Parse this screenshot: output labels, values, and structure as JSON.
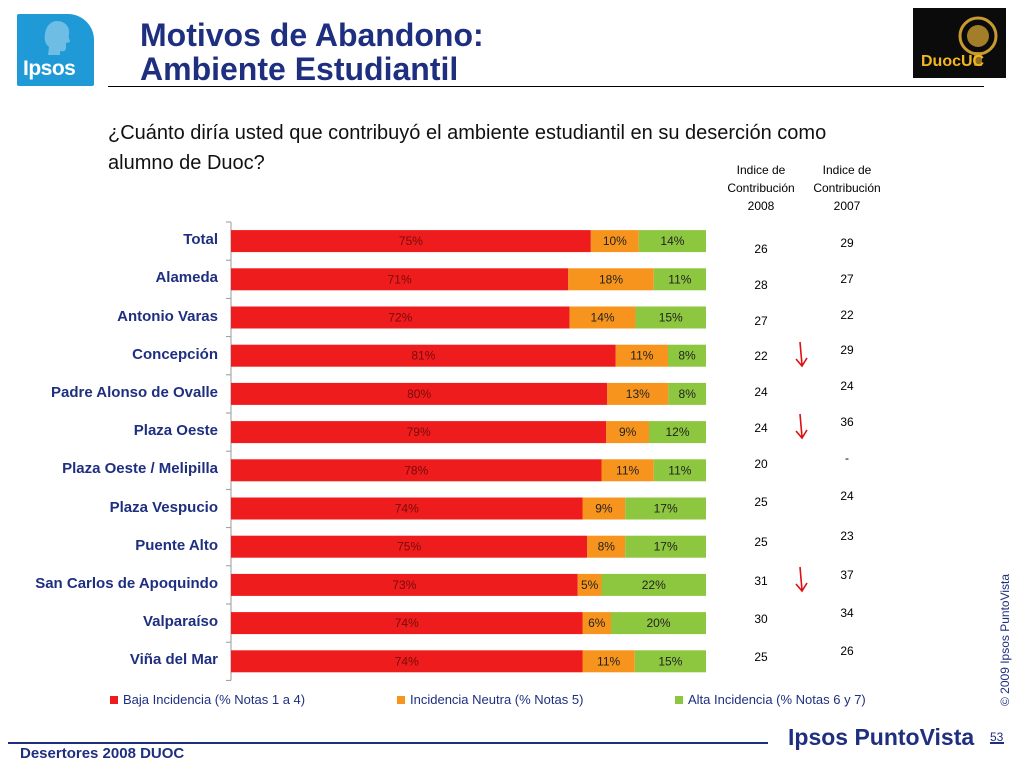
{
  "header": {
    "title_line1": "Motivos de Abandono:",
    "title_line2": "Ambiente Estudiantil",
    "ipsos_logo_text": "Ipsos",
    "duoc_logo_text": "DuocUC"
  },
  "question": "¿Cuánto diría usted que contribuyó el ambiente estudiantil en su deserción como alumno de Duoc?",
  "index_table": {
    "header_2008": "Indice de Contribución 2008",
    "header_2007": "Indice de Contribución 2007",
    "values_2008": [
      "26",
      "28",
      "27",
      "22",
      "24",
      "24",
      "20",
      "25",
      "25",
      "31",
      "30",
      "25"
    ],
    "values_2007": [
      "29",
      "27",
      "22",
      "29",
      "24",
      "36",
      "-",
      "24",
      "23",
      "37",
      "34",
      "26"
    ],
    "down_arrow_rows": [
      3,
      5,
      9
    ]
  },
  "chart_data": {
    "type": "bar",
    "orientation": "horizontal",
    "stacked": true,
    "categories": [
      "Total",
      "Alameda",
      "Antonio Varas",
      "Concepción",
      "Padre Alonso de Ovalle",
      "Plaza Oeste",
      "Plaza Oeste / Melipilla",
      "Plaza Vespucio",
      "Puente Alto",
      "San Carlos de Apoquindo",
      "Valparaíso",
      "Viña del Mar"
    ],
    "series": [
      {
        "name": "Baja Incidencia (% Notas 1 a 4)",
        "color": "#ee1c1c",
        "values": [
          75,
          71,
          72,
          81,
          80,
          79,
          78,
          74,
          75,
          73,
          74,
          74
        ]
      },
      {
        "name": "Incidencia Neutra (% Notas 5)",
        "color": "#f7941d",
        "values": [
          10,
          18,
          14,
          11,
          13,
          9,
          11,
          9,
          8,
          5,
          6,
          11
        ]
      },
      {
        "name": "Alta Incidencia (% Notas 6 y 7)",
        "color": "#8dc63f",
        "values": [
          14,
          11,
          15,
          8,
          8,
          12,
          11,
          17,
          17,
          22,
          20,
          15
        ]
      }
    ],
    "value_suffix": "%",
    "legend": "bottom",
    "grid": false
  },
  "footer": {
    "left_text": "Desertores 2008 DUOC",
    "brand": "Ipsos PuntoVista",
    "copyright": "© 2009 Ipsos PuntoVista",
    "page_number": "53"
  }
}
